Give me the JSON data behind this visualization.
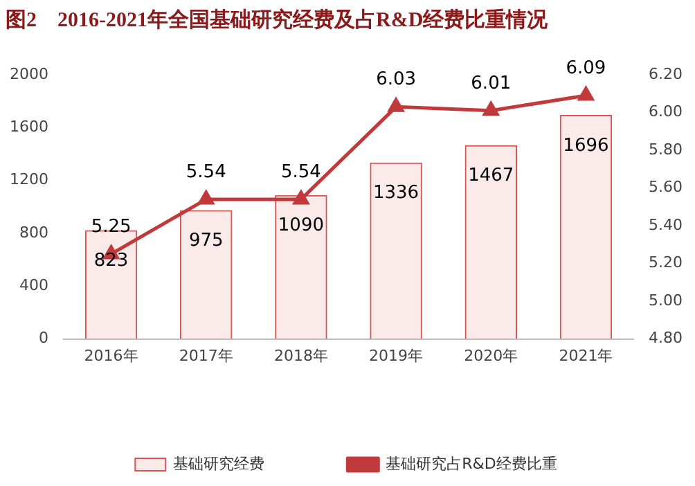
{
  "chart_data": {
    "type": "bar",
    "title": "图2    2016-2021年全国基础研究经费及占R&D经费比重情况",
    "categories": [
      "2016年",
      "2017年",
      "2018年",
      "2019年",
      "2020年",
      "2021年"
    ],
    "series": [
      {
        "name": "基础研究经费",
        "color": "#d9534f",
        "values": [
          823,
          975,
          1090,
          1336,
          1467,
          1696
        ]
      },
      {
        "name": "基础研究占R&D经费比重",
        "type": "line",
        "axis": "y2",
        "color": "#c0393b",
        "values": [
          5.25,
          5.54,
          5.54,
          6.03,
          6.01,
          6.09
        ]
      }
    ],
    "ylim": [
      0,
      2000
    ],
    "yticks": [
      0,
      400,
      800,
      1200,
      1600,
      2000
    ],
    "y2lim": [
      4.8,
      6.2
    ],
    "y2ticks": [
      {
        "value": 4.8,
        "label": "4.80"
      },
      {
        "value": 5.0,
        "label": "5.00"
      },
      {
        "value": 5.2,
        "label": "5.20"
      },
      {
        "value": 5.4,
        "label": "5.40"
      },
      {
        "value": 5.6,
        "label": "5.60"
      },
      {
        "value": 5.8,
        "label": "5.80"
      },
      {
        "value": 6.0,
        "label": "6.00"
      },
      {
        "value": 6.2,
        "label": "6.20"
      }
    ],
    "data_labels": true,
    "legend": "bottom",
    "grid": false,
    "marker": "triangle"
  }
}
